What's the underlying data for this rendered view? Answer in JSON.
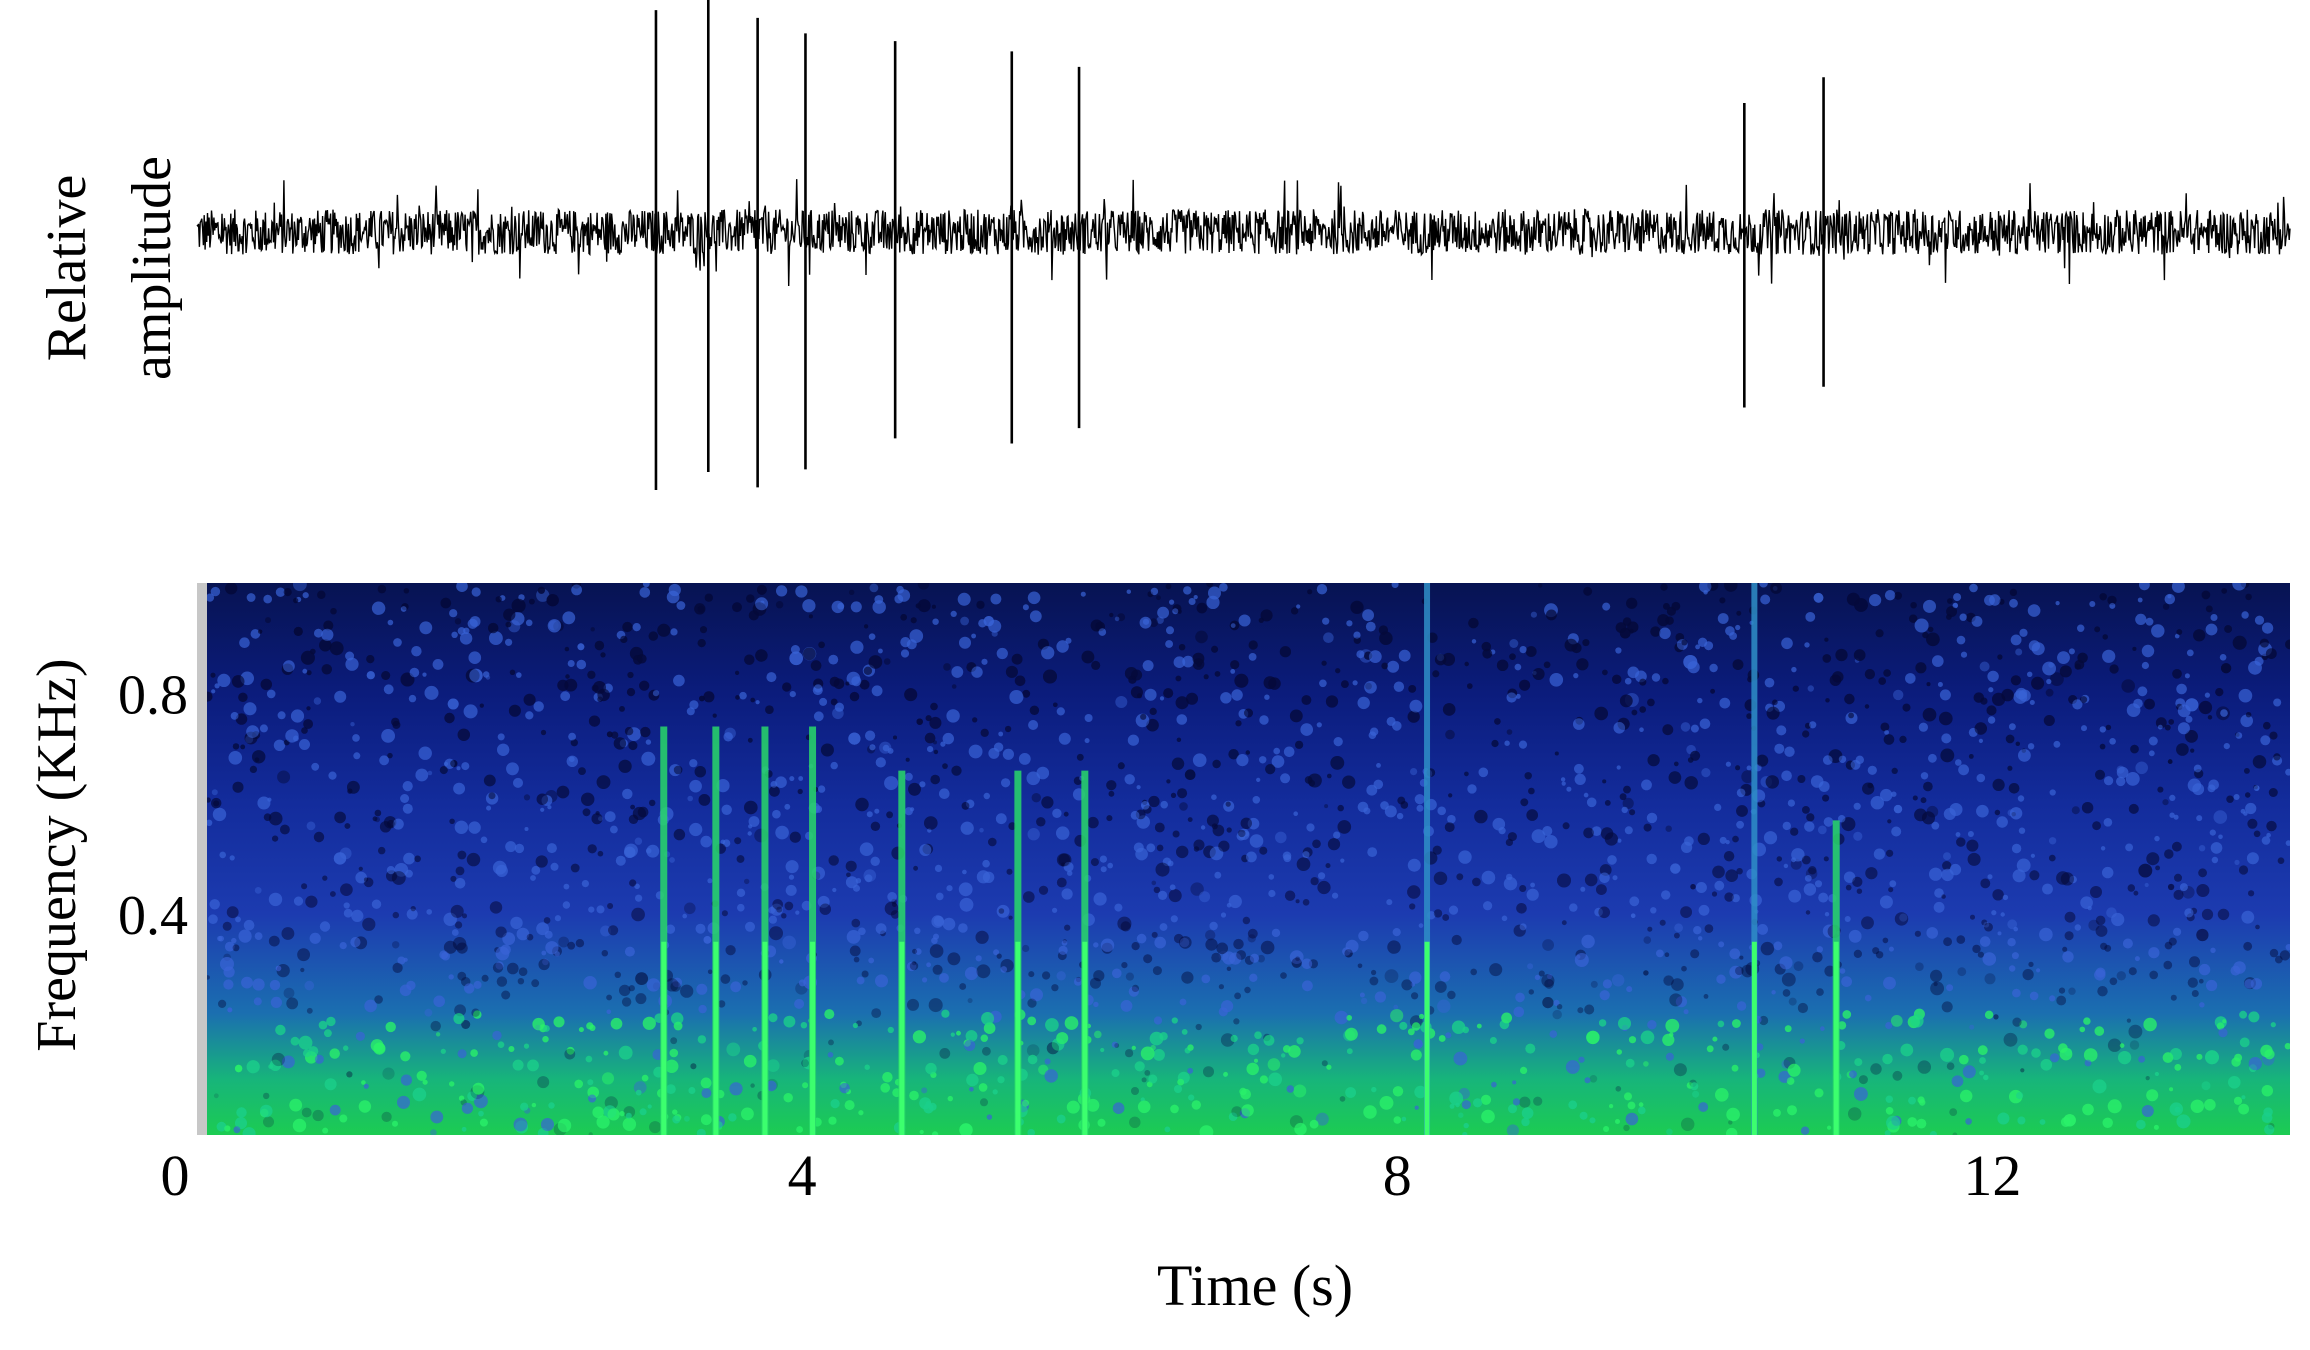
{
  "chart_data": [
    {
      "type": "line",
      "panel": "waveform",
      "title": "",
      "xlabel": "",
      "ylabel_lines": [
        "Relative",
        "amplitude"
      ],
      "xlim": [
        0,
        14
      ],
      "ylim": [
        -1,
        1
      ],
      "noise_level": 0.16,
      "color": "#000000",
      "spikes": [
        {
          "t": 3.07,
          "up": 0.86,
          "down": -1.0
        },
        {
          "t": 3.42,
          "up": 0.9,
          "down": -0.93
        },
        {
          "t": 3.75,
          "up": 0.83,
          "down": -0.99
        },
        {
          "t": 4.07,
          "up": 0.77,
          "down": -0.92
        },
        {
          "t": 4.67,
          "up": 0.74,
          "down": -0.8
        },
        {
          "t": 5.45,
          "up": 0.7,
          "down": -0.82
        },
        {
          "t": 5.9,
          "up": 0.64,
          "down": -0.76
        },
        {
          "t": 10.35,
          "up": 0.5,
          "down": -0.68
        },
        {
          "t": 10.88,
          "up": 0.6,
          "down": -0.6
        }
      ]
    },
    {
      "type": "heatmap",
      "panel": "spectrogram",
      "title": "",
      "xlabel": "Time (s)",
      "ylabel": "Frequency (KHz)",
      "xlim": [
        0,
        14
      ],
      "ylim": [
        0,
        1.0
      ],
      "xticks": [
        0,
        4,
        8,
        12
      ],
      "xtick_labels": [
        "0",
        "4",
        "8",
        "12"
      ],
      "yticks": [
        0.4,
        0.8
      ],
      "ytick_labels": [
        "0.4",
        "0.8"
      ],
      "colormap": [
        "#06062e",
        "#0d1a9a",
        "#1b3fb0",
        "#14a0a0",
        "#1ee85a"
      ],
      "vertical_lines": [
        {
          "t": 3.07,
          "top_freq": 0.74
        },
        {
          "t": 3.42,
          "top_freq": 0.74
        },
        {
          "t": 3.75,
          "top_freq": 0.74
        },
        {
          "t": 4.07,
          "top_freq": 0.74
        },
        {
          "t": 4.67,
          "top_freq": 0.66
        },
        {
          "t": 5.45,
          "top_freq": 0.66
        },
        {
          "t": 5.9,
          "top_freq": 0.66
        },
        {
          "t": 8.2,
          "top_freq": 1.0
        },
        {
          "t": 10.4,
          "top_freq": 1.0
        },
        {
          "t": 10.95,
          "top_freq": 0.57
        }
      ]
    }
  ]
}
